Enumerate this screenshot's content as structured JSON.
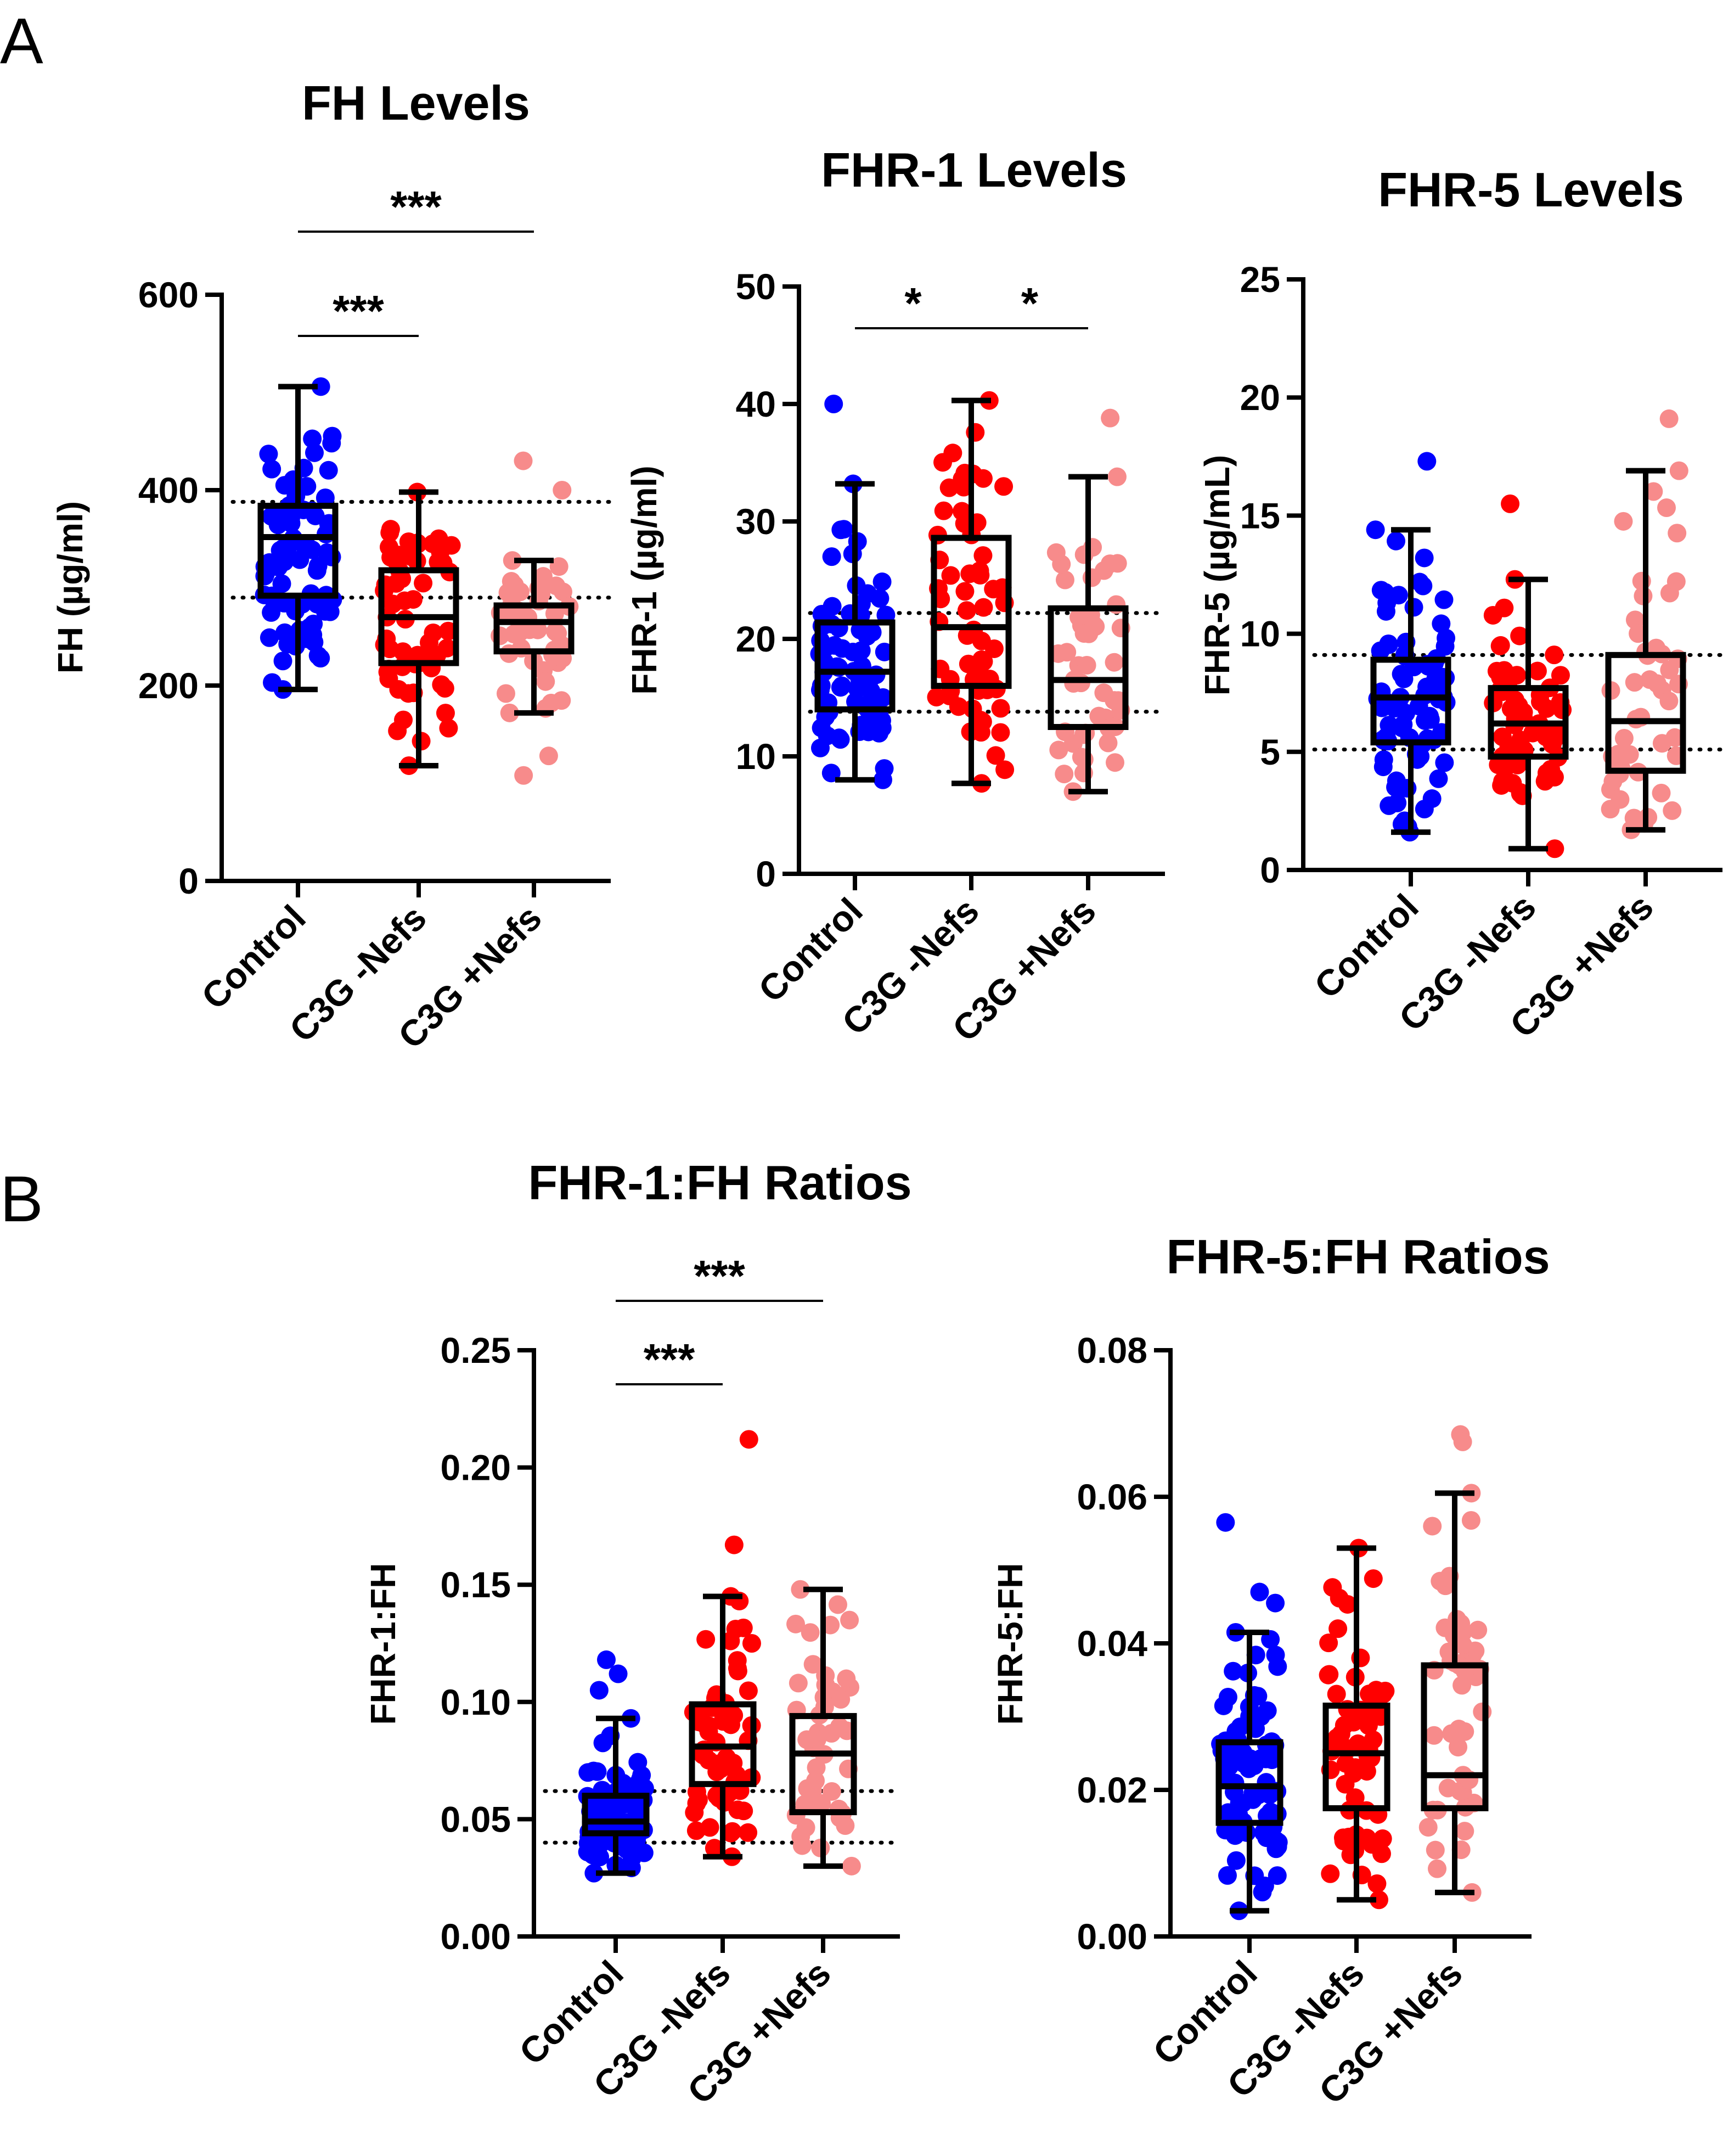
{
  "panel_labels": [
    "A",
    "B"
  ],
  "colors": {
    "control": "#0000ff",
    "c3g_minus": "#ff0000",
    "c3g_plus": "#f78b8b",
    "box": "#000000",
    "background": "#ffffff"
  },
  "chart_data": [
    {
      "type": "box",
      "panel": "A",
      "title": "FH Levels",
      "xlabel": "",
      "ylabel": "FH (µg/ml)",
      "ylim": [
        0,
        600
      ],
      "yticks": [
        0,
        200,
        400,
        600
      ],
      "ytick_labels": [
        "0",
        "200",
        "400",
        "600"
      ],
      "categories": [
        "Control",
        "C3G -Nefs",
        "C3G +Nefs"
      ],
      "reference_lines": [
        388,
        290
      ],
      "boxes": [
        {
          "min": 196,
          "q1": 292,
          "median": 352,
          "q3": 384,
          "max": 506,
          "n": 80
        },
        {
          "min": 118,
          "q1": 223,
          "median": 270,
          "q3": 318,
          "max": 398,
          "n": 60
        },
        {
          "min": 172,
          "q1": 235,
          "median": 265,
          "q3": 282,
          "max": 328,
          "n": 45
        }
      ],
      "outliers": [
        [],
        [],
        [
          430,
          400,
          108,
          128
        ]
      ],
      "significance": [
        {
          "from": 0,
          "to": 1,
          "label": "***",
          "level": 1
        },
        {
          "from": 0,
          "to": 2,
          "label": "***",
          "level": 2
        }
      ]
    },
    {
      "type": "box",
      "panel": "A",
      "title": "FHR-1 Levels",
      "xlabel": "",
      "ylabel": "FHR-1 (µg/ml)",
      "ylim": [
        0,
        50
      ],
      "yticks": [
        0,
        10,
        20,
        30,
        40,
        50
      ],
      "ytick_labels": [
        "0",
        "10",
        "20",
        "30",
        "40",
        "50"
      ],
      "categories": [
        "Control",
        "C3G -Nefs",
        "C3G +Nefs"
      ],
      "reference_lines": [
        22.2,
        13.8
      ],
      "boxes": [
        {
          "min": 8.0,
          "q1": 14.0,
          "median": 17.2,
          "q3": 21.4,
          "max": 33.2,
          "n": 80
        },
        {
          "min": 7.7,
          "q1": 16.0,
          "median": 21.0,
          "q3": 28.6,
          "max": 40.3,
          "n": 60
        },
        {
          "min": 7.0,
          "q1": 12.5,
          "median": 16.5,
          "q3": 22.6,
          "max": 33.8,
          "n": 45
        }
      ],
      "outliers": [
        [
          40.0
        ],
        [],
        [
          38.8
        ]
      ],
      "significance": [
        {
          "from": 0,
          "to": 1,
          "label": "*",
          "level": 1
        },
        {
          "from": 1,
          "to": 2,
          "label": "*",
          "level": 1
        }
      ]
    },
    {
      "type": "box",
      "panel": "A",
      "title": "FHR-5 Levels",
      "xlabel": "",
      "ylabel": "FHR-5 (µg/mL)",
      "ylim": [
        0,
        25
      ],
      "yticks": [
        0,
        5,
        10,
        15,
        20,
        25
      ],
      "ytick_labels": [
        "0",
        "5",
        "10",
        "15",
        "20",
        "25"
      ],
      "categories": [
        "Control",
        "C3G -Nefs",
        "C3G +Nefs"
      ],
      "reference_lines": [
        9.1,
        5.1
      ],
      "boxes": [
        {
          "min": 1.6,
          "q1": 5.4,
          "median": 7.3,
          "q3": 8.9,
          "max": 14.4,
          "n": 80
        },
        {
          "min": 0.9,
          "q1": 4.8,
          "median": 6.2,
          "q3": 7.7,
          "max": 12.3,
          "n": 60
        },
        {
          "min": 1.7,
          "q1": 4.2,
          "median": 6.3,
          "q3": 9.1,
          "max": 16.9,
          "n": 45
        }
      ],
      "outliers": [
        [
          17.3
        ],
        [
          15.5
        ],
        [
          19.1
        ]
      ],
      "significance": []
    },
    {
      "type": "box",
      "panel": "B",
      "title": "FHR-1:FH Ratios",
      "xlabel": "",
      "ylabel": "FHR-1:FH",
      "ylim": [
        0,
        0.25
      ],
      "yticks": [
        0,
        0.05,
        0.1,
        0.15,
        0.2,
        0.25
      ],
      "ytick_labels": [
        "0.00",
        "0.05",
        "0.10",
        "0.15",
        "0.20",
        "0.25"
      ],
      "categories": [
        "Control",
        "C3G -Nefs",
        "C3G +Nefs"
      ],
      "reference_lines": [
        0.062,
        0.04
      ],
      "boxes": [
        {
          "min": 0.027,
          "q1": 0.044,
          "median": 0.049,
          "q3": 0.06,
          "max": 0.093,
          "n": 80
        },
        {
          "min": 0.034,
          "q1": 0.065,
          "median": 0.081,
          "q3": 0.099,
          "max": 0.145,
          "n": 60
        },
        {
          "min": 0.03,
          "q1": 0.053,
          "median": 0.078,
          "q3": 0.094,
          "max": 0.148,
          "n": 45
        }
      ],
      "outliers": [
        [
          0.118,
          0.112,
          0.105
        ],
        [
          0.212,
          0.167
        ],
        []
      ],
      "significance": [
        {
          "from": 0,
          "to": 1,
          "label": "***",
          "level": 1
        },
        {
          "from": 0,
          "to": 2,
          "label": "***",
          "level": 2
        }
      ]
    },
    {
      "type": "box",
      "panel": "B",
      "title": "FHR-5:FH Ratios",
      "xlabel": "",
      "ylabel": "FHR-5:FH",
      "ylim": [
        0,
        0.08
      ],
      "yticks": [
        0,
        0.02,
        0.04,
        0.06,
        0.08
      ],
      "ytick_labels": [
        "0.00",
        "0.02",
        "0.04",
        "0.06",
        "0.08"
      ],
      "categories": [
        "Control",
        "C3G -Nefs",
        "C3G +Nefs"
      ],
      "reference_lines": [],
      "boxes": [
        {
          "min": 0.0035,
          "q1": 0.0155,
          "median": 0.0205,
          "q3": 0.0265,
          "max": 0.0415,
          "n": 80
        },
        {
          "min": 0.005,
          "q1": 0.0175,
          "median": 0.025,
          "q3": 0.0315,
          "max": 0.053,
          "n": 60
        },
        {
          "min": 0.006,
          "q1": 0.0175,
          "median": 0.022,
          "q3": 0.037,
          "max": 0.0605,
          "n": 45
        }
      ],
      "outliers": [
        [
          0.0565,
          0.047,
          0.0455
        ],
        [],
        [
          0.0685,
          0.0675
        ]
      ],
      "significance": []
    }
  ]
}
